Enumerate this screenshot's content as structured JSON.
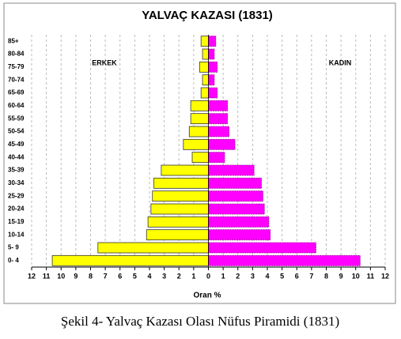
{
  "chart_data": {
    "type": "pyramid",
    "title": "YALVAÇ KAZASI (1831)",
    "categories": [
      "0- 4",
      "5- 9",
      "10-14",
      "15-19",
      "20-24",
      "25-29",
      "30-34",
      "35-39",
      "40-44",
      "45-49",
      "50-54",
      "55-59",
      "60-64",
      "65-69",
      "70-74",
      "75-79",
      "80-84",
      "85+"
    ],
    "series": [
      {
        "name": "ERKEK",
        "color": "#ffff00",
        "values": [
          -10.6,
          -7.5,
          -4.2,
          -4.1,
          -3.9,
          -3.8,
          -3.7,
          -3.2,
          -1.1,
          -1.7,
          -1.3,
          -1.2,
          -1.2,
          -0.5,
          -0.4,
          -0.6,
          -0.4,
          -0.5
        ]
      },
      {
        "name": "KADIN",
        "color": "#ff00ff",
        "values": [
          10.3,
          7.3,
          4.2,
          4.1,
          3.8,
          3.7,
          3.6,
          3.1,
          1.1,
          1.8,
          1.4,
          1.3,
          1.3,
          0.6,
          0.4,
          0.6,
          0.4,
          0.5
        ]
      }
    ],
    "xlabel": "Oran %",
    "xlim": [
      -12,
      12
    ],
    "xticks": [
      {
        "value": -12,
        "label": "12"
      },
      {
        "value": -11,
        "label": "11"
      },
      {
        "value": -10,
        "label": "10"
      },
      {
        "value": -9,
        "label": "9"
      },
      {
        "value": -8,
        "label": "8"
      },
      {
        "value": -7,
        "label": "7"
      },
      {
        "value": -6,
        "label": "6"
      },
      {
        "value": -5,
        "label": "5"
      },
      {
        "value": -4,
        "label": "4"
      },
      {
        "value": -3,
        "label": "3"
      },
      {
        "value": -2,
        "label": "2"
      },
      {
        "value": -1,
        "label": "1"
      },
      0,
      1,
      2,
      3,
      4,
      5,
      6,
      7,
      8,
      9,
      10,
      11,
      12
    ],
    "grid": true
  },
  "caption": "Şekil 4- Yalvaç Kazası Olası Nüfus Piramidi (1831)"
}
